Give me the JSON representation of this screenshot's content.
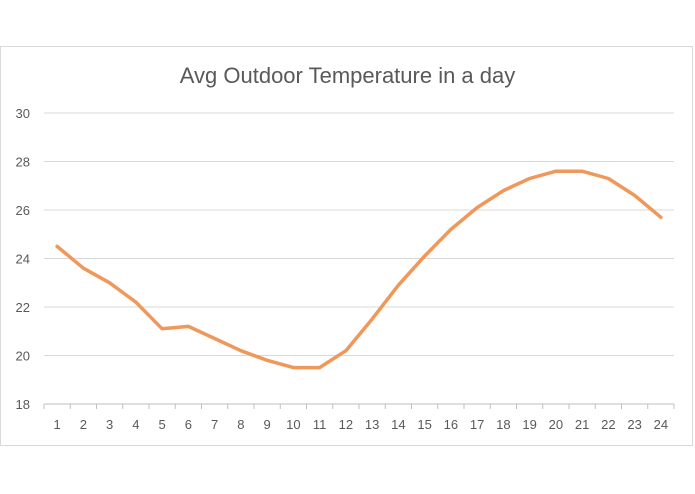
{
  "chart_data": {
    "type": "line",
    "title": "Avg Outdoor Temperature in a day",
    "xlabel": "",
    "ylabel": "",
    "categories": [
      "1",
      "2",
      "3",
      "4",
      "5",
      "6",
      "7",
      "8",
      "9",
      "10",
      "11",
      "12",
      "13",
      "14",
      "15",
      "16",
      "17",
      "18",
      "19",
      "20",
      "21",
      "22",
      "23",
      "24"
    ],
    "series": [
      {
        "values": [
          24.5,
          23.6,
          23.0,
          22.2,
          21.1,
          21.2,
          20.7,
          20.2,
          19.8,
          19.5,
          19.5,
          20.2,
          21.5,
          22.9,
          24.1,
          25.2,
          26.1,
          26.8,
          27.3,
          27.6,
          27.6,
          27.3,
          26.6,
          25.7
        ],
        "color": "#f0975a"
      }
    ],
    "ylim": [
      18,
      30
    ],
    "yticks": [
      18,
      20,
      22,
      24,
      26,
      28,
      30
    ],
    "grid": true,
    "legend": "none"
  }
}
